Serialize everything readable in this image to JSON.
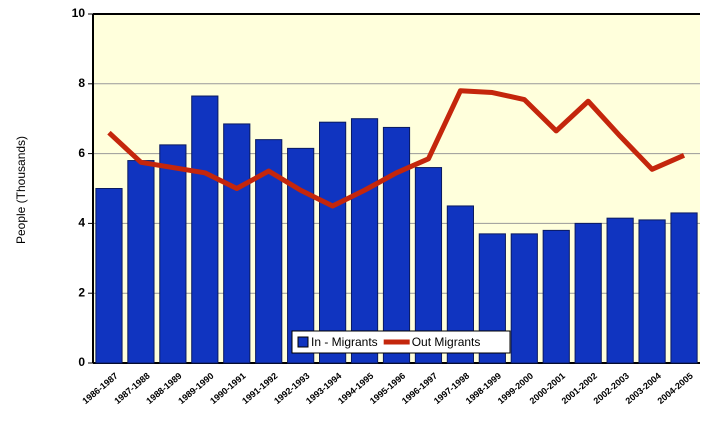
{
  "chart_data": {
    "type": "bar",
    "y_label": "People (Thousands)",
    "categories": [
      "1986-1987",
      "1987-1988",
      "1988-1989",
      "1989-1990",
      "1990-1991",
      "1991-1992",
      "1992-1993",
      "1993-1994",
      "1994-1995",
      "1995-1996",
      "1996-1997",
      "1997-1998",
      "1998-1999",
      "1999-2000",
      "2000-2001",
      "2001-2002",
      "2002-2003",
      "2003-2004",
      "2004-2005"
    ],
    "series": [
      {
        "name": "In - Migrants",
        "type": "bar",
        "color": "#1034c0",
        "values": [
          5.0,
          5.8,
          6.25,
          7.65,
          6.85,
          6.4,
          6.15,
          6.9,
          7.0,
          6.75,
          5.6,
          4.5,
          3.7,
          3.7,
          3.8,
          4.0,
          4.15,
          4.1,
          4.3
        ]
      },
      {
        "name": "Out Migrants",
        "type": "line",
        "color": "#c4260c",
        "values": [
          6.6,
          5.75,
          5.6,
          5.45,
          5.0,
          5.5,
          4.95,
          4.5,
          4.95,
          5.45,
          5.85,
          7.8,
          7.75,
          7.55,
          6.65,
          7.5,
          6.5,
          5.55,
          5.95
        ]
      }
    ],
    "ylim": [
      0,
      10
    ],
    "yticks": [
      0,
      2,
      4,
      6,
      8,
      10
    ],
    "grid": true,
    "legend": "bottom"
  }
}
